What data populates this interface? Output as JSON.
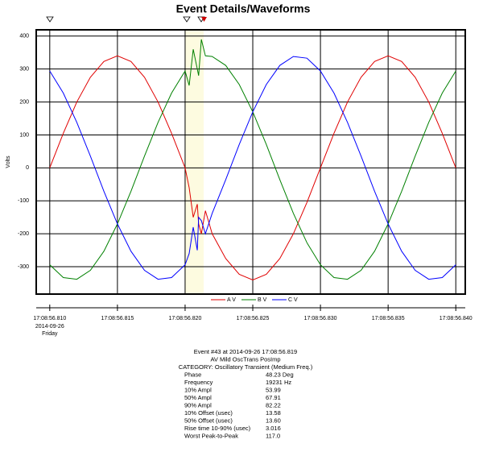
{
  "chart_data": {
    "type": "line",
    "title": "Event Details/Waveforms",
    "y_label": "Volts",
    "x": [
      56.81,
      56.811,
      56.812,
      56.813,
      56.814,
      56.815,
      56.816,
      56.817,
      56.818,
      56.819,
      56.82,
      56.8203,
      56.8206,
      56.8209,
      56.821,
      56.8212,
      56.8215,
      56.822,
      56.823,
      56.824,
      56.825,
      56.826,
      56.827,
      56.828,
      56.829,
      56.83,
      56.831,
      56.832,
      56.833,
      56.834,
      56.835,
      56.836,
      56.837,
      56.838,
      56.839,
      56.84
    ],
    "series": [
      {
        "name": "A V",
        "color": "#e00000",
        "values": [
          0,
          105,
          200,
          275,
          323,
          340,
          323,
          275,
          200,
          105,
          0,
          -60,
          -150,
          -110,
          -170,
          -200,
          -130,
          -200,
          -275,
          -323,
          -340,
          -323,
          -275,
          -200,
          -105,
          0,
          105,
          200,
          275,
          323,
          340,
          323,
          275,
          200,
          105,
          0
        ]
      },
      {
        "name": "B V",
        "color": "#008000",
        "values": [
          -294,
          -333,
          -338,
          -311,
          -253,
          -170,
          -71,
          36,
          138,
          227,
          294,
          250,
          360,
          300,
          280,
          390,
          340,
          338,
          311,
          253,
          170,
          71,
          -36,
          -138,
          -227,
          -294,
          -333,
          -338,
          -311,
          -253,
          -170,
          -71,
          36,
          138,
          227,
          294
        ]
      },
      {
        "name": "C V",
        "color": "#0000ff",
        "values": [
          294,
          227,
          138,
          36,
          -71,
          -170,
          -253,
          -311,
          -338,
          -333,
          -294,
          -260,
          -180,
          -250,
          -150,
          -160,
          -200,
          -138,
          -36,
          71,
          170,
          253,
          311,
          338,
          333,
          294,
          227,
          138,
          36,
          -71,
          -170,
          -253,
          -311,
          -338,
          -333,
          -294
        ]
      }
    ],
    "xlim": [
      56.809,
      56.8407
    ],
    "ylim": [
      -383,
      419
    ],
    "xticks": [
      {
        "value": 56.81,
        "label": "17:08:56.810"
      },
      {
        "value": 56.815,
        "label": "17:08:56.815"
      },
      {
        "value": 56.82,
        "label": "17:08:56.820"
      },
      {
        "value": 56.825,
        "label": "17:08:56.825"
      },
      {
        "value": 56.83,
        "label": "17:08:56.830"
      },
      {
        "value": 56.835,
        "label": "17:08:56.835"
      },
      {
        "value": 56.84,
        "label": "17:08:56.840"
      }
    ],
    "yticks": [
      400,
      300,
      200,
      100,
      0,
      -100,
      -200,
      -300
    ],
    "x_date_label": "2014-09-26",
    "x_day_label": "Friday",
    "grid": true
  },
  "event_details": {
    "lines": [
      "Event #43 at 2014-09-26 17:08:56.819",
      "AV Mild OscTrans PosImp",
      "CATEGORY: Oscillatory Transient (Medium Freq.)"
    ],
    "rows": [
      [
        "Phase",
        "48.23 Deg"
      ],
      [
        "Frequency",
        "19231 Hz"
      ],
      [
        "10% Ampl",
        "53.99"
      ],
      [
        "50% Ampl",
        "67.91"
      ],
      [
        "90% Ampl",
        "82.22"
      ],
      [
        "10% Offset (usec)",
        "13.58"
      ],
      [
        "50% Offset (usec)",
        "13.60"
      ],
      [
        "Rise time 10-90% (usec)",
        "3.016"
      ],
      [
        "Worst Peak-to-Peak",
        "117.0"
      ]
    ]
  }
}
